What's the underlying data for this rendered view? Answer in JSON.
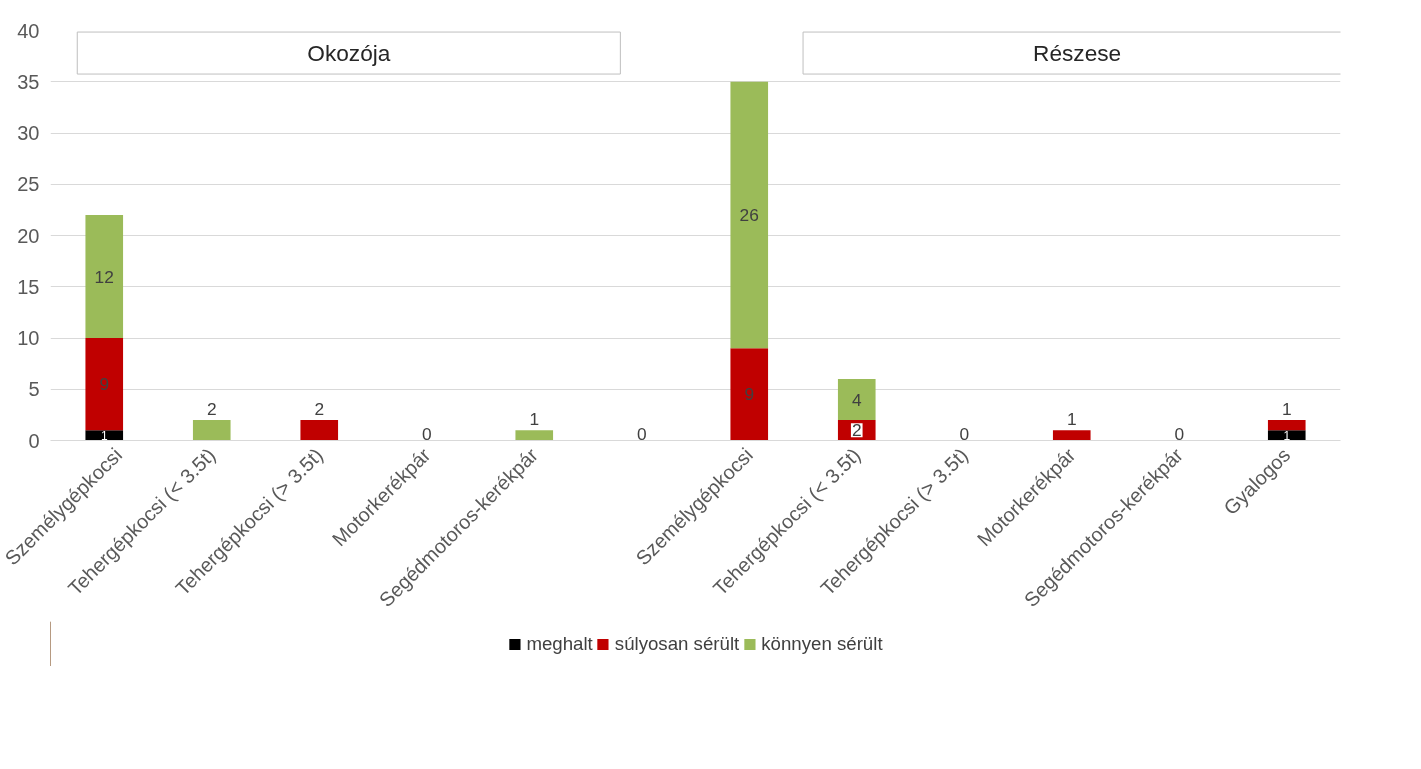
{
  "chart_data": {
    "type": "bar",
    "stacked": true,
    "categories": [
      "Személygépkocsi",
      "Tehergépkocsi (< 3.5t)",
      "Tehergépkocsi (> 3.5t)",
      "Motorkerékpár",
      "Segédmotoros-kerékpár",
      null,
      "Személygépkocsi",
      "Tehergépkocsi (< 3.5t)",
      "Tehergépkocsi (> 3.5t)",
      "Motorkerékpár",
      "Segédmotoros-kerékpár",
      "Gyalogos"
    ],
    "series": [
      {
        "name": "meghalt",
        "color": "#000000",
        "values": [
          1,
          0,
          0,
          0,
          0,
          0,
          0,
          0,
          0,
          0,
          0,
          1
        ],
        "value_labels": [
          "1",
          null,
          null,
          "0",
          null,
          "0",
          null,
          null,
          "0",
          null,
          "0",
          "1"
        ]
      },
      {
        "name": "súlyosan sérült",
        "color": "#c00000",
        "values": [
          9,
          0,
          2,
          0,
          0,
          0,
          9,
          2,
          0,
          1,
          0,
          1
        ],
        "value_labels": [
          "9",
          null,
          "2",
          null,
          null,
          null,
          "9",
          "2",
          null,
          "1",
          null,
          "1"
        ]
      },
      {
        "name": "könnyen sérült",
        "color": "#9bbb59",
        "values": [
          12,
          2,
          0,
          0,
          1,
          0,
          26,
          4,
          0,
          0,
          0,
          0
        ],
        "value_labels": [
          "12",
          "2",
          null,
          null,
          "1",
          null,
          "26",
          "4",
          null,
          null,
          null,
          null
        ]
      }
    ],
    "annotations": [
      "Okozója",
      "Részese"
    ],
    "ylim": [
      0,
      40
    ],
    "yticks": [
      0,
      5,
      10,
      15,
      20,
      25,
      30,
      35,
      40
    ],
    "grid": "y",
    "legend": "bottom"
  }
}
